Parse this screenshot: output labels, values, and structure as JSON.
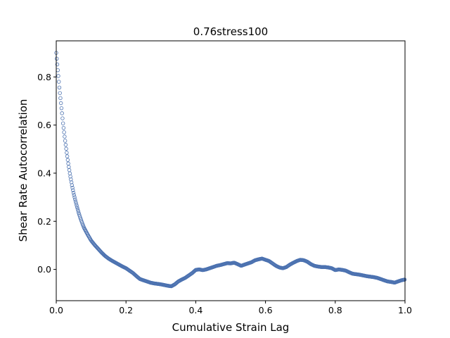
{
  "chart_data": {
    "type": "scatter",
    "title": "0.76stress100",
    "xlabel": "Cumulative Strain Lag",
    "ylabel": "Shear Rate Autocorrelation",
    "xlim": [
      0.0,
      1.0
    ],
    "ylim": [
      -0.13,
      0.95
    ],
    "xticks": [
      0.0,
      0.2,
      0.4,
      0.6,
      0.8,
      1.0
    ],
    "xtick_labels": [
      "0.0",
      "0.2",
      "0.4",
      "0.6",
      "0.8",
      "1.0"
    ],
    "yticks": [
      0.0,
      0.2,
      0.4,
      0.6,
      0.8
    ],
    "ytick_labels": [
      "0.0",
      "0.2",
      "0.4",
      "0.6",
      "0.8"
    ],
    "grid": false,
    "marker": "open-circle",
    "marker_color": "#4c72b0",
    "series": [
      {
        "name": "",
        "x": [
          0.0,
          0.005,
          0.01,
          0.015,
          0.02,
          0.025,
          0.03,
          0.035,
          0.04,
          0.045,
          0.05,
          0.055,
          0.06,
          0.065,
          0.07,
          0.075,
          0.08,
          0.09,
          0.1,
          0.11,
          0.12,
          0.13,
          0.14,
          0.15,
          0.16,
          0.17,
          0.18,
          0.19,
          0.2,
          0.21,
          0.22,
          0.23,
          0.24,
          0.25,
          0.26,
          0.27,
          0.28,
          0.29,
          0.3,
          0.31,
          0.32,
          0.33,
          0.34,
          0.35,
          0.36,
          0.37,
          0.38,
          0.39,
          0.4,
          0.41,
          0.42,
          0.43,
          0.44,
          0.45,
          0.46,
          0.47,
          0.48,
          0.49,
          0.5,
          0.51,
          0.52,
          0.53,
          0.54,
          0.55,
          0.56,
          0.57,
          0.58,
          0.59,
          0.6,
          0.61,
          0.62,
          0.63,
          0.64,
          0.65,
          0.66,
          0.67,
          0.68,
          0.69,
          0.7,
          0.71,
          0.72,
          0.73,
          0.74,
          0.75,
          0.76,
          0.77,
          0.78,
          0.79,
          0.8,
          0.81,
          0.82,
          0.83,
          0.84,
          0.85,
          0.86,
          0.87,
          0.88,
          0.89,
          0.9,
          0.91,
          0.92,
          0.93,
          0.94,
          0.95,
          0.96,
          0.97,
          0.98,
          0.99,
          1.0
        ],
        "y": [
          0.9,
          0.82,
          0.74,
          0.67,
          0.6,
          0.54,
          0.485,
          0.435,
          0.39,
          0.35,
          0.315,
          0.285,
          0.258,
          0.232,
          0.21,
          0.19,
          0.172,
          0.145,
          0.12,
          0.102,
          0.086,
          0.07,
          0.056,
          0.045,
          0.036,
          0.028,
          0.02,
          0.012,
          0.005,
          -0.005,
          -0.015,
          -0.028,
          -0.04,
          -0.045,
          -0.05,
          -0.055,
          -0.058,
          -0.06,
          -0.062,
          -0.065,
          -0.068,
          -0.07,
          -0.062,
          -0.05,
          -0.042,
          -0.035,
          -0.025,
          -0.015,
          -0.002,
          0.0,
          -0.003,
          0.0,
          0.005,
          0.01,
          0.015,
          0.018,
          0.022,
          0.026,
          0.025,
          0.028,
          0.022,
          0.015,
          0.02,
          0.025,
          0.03,
          0.038,
          0.042,
          0.045,
          0.04,
          0.035,
          0.025,
          0.015,
          0.008,
          0.005,
          0.01,
          0.02,
          0.028,
          0.035,
          0.04,
          0.038,
          0.032,
          0.022,
          0.015,
          0.012,
          0.01,
          0.01,
          0.008,
          0.005,
          -0.003,
          0.0,
          -0.002,
          -0.005,
          -0.012,
          -0.018,
          -0.02,
          -0.022,
          -0.025,
          -0.028,
          -0.03,
          -0.032,
          -0.035,
          -0.04,
          -0.045,
          -0.05,
          -0.052,
          -0.055,
          -0.05,
          -0.045,
          -0.042
        ]
      }
    ]
  }
}
